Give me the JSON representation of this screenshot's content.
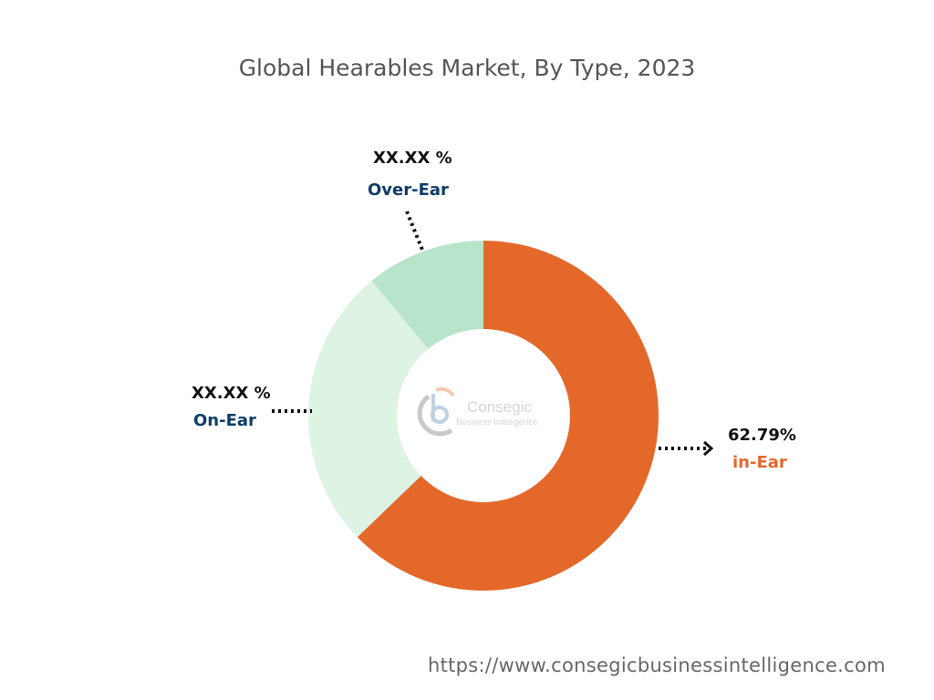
{
  "chart_data": {
    "type": "pie",
    "donut": true,
    "title": "Global Hearables Market, By Type, 2023",
    "slices": [
      {
        "name": "in-Ear",
        "value": 62.79,
        "label": "62.79%",
        "color": "#E4682A",
        "name_color": "#E4682A"
      },
      {
        "name": "On-Ear",
        "value": 26.2,
        "label": "XX.XX %",
        "color": "#DDF3E3",
        "name_color": "#0F3D66"
      },
      {
        "name": "Over-Ear",
        "value": 11.01,
        "label": "XX.XX %",
        "color": "#B9E4CC",
        "name_color": "#0F3D66"
      }
    ],
    "start": "top",
    "direction": "clockwise"
  },
  "watermark": {
    "brand": "Consegic",
    "tagline": "Business Intelligence"
  },
  "footer": {
    "url": "https://www.consegicbusinessintelligence.com"
  }
}
